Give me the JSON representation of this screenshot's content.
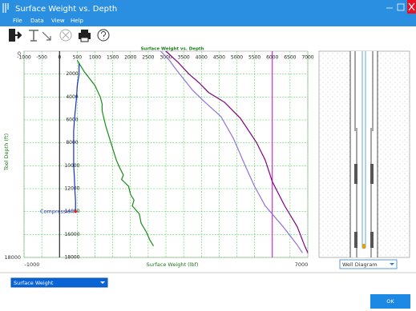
{
  "window": {
    "title": "Surface Weight vs. Depth",
    "menu": [
      "File",
      "Data",
      "View",
      "Help"
    ]
  },
  "chart_data": {
    "type": "line",
    "title": "Surface Weight vs. Depth",
    "x_label": "Surface Weight (lbf)",
    "y_label": "Tool Depth (ft)",
    "annotation": "Compression",
    "xlim": [
      -1000,
      7000
    ],
    "ylim": [
      0,
      18000
    ],
    "xticks": [
      -1000,
      -500,
      0,
      500,
      1000,
      1500,
      2000,
      2500,
      3000,
      3500,
      4000,
      4500,
      5000,
      5500,
      6000,
      6500,
      7000
    ],
    "yticks": [
      2000,
      4000,
      6000,
      8000,
      10000,
      12000,
      14000,
      16000,
      18000
    ],
    "grid": true,
    "grid_color": "#33cc33",
    "y_inverted": true,
    "series": [
      {
        "color": "#1030d0",
        "x": [
          550,
          550,
          500,
          480,
          450,
          420,
          400,
          400,
          400,
          400,
          420,
          430,
          450,
          450
        ],
        "y": [
          1000,
          2000,
          3000,
          4000,
          5000,
          6000,
          7000,
          8000,
          9000,
          10000,
          11000,
          12000,
          13000,
          14000
        ]
      },
      {
        "color": "#1a8a1a",
        "x": [
          500,
          700,
          1000,
          1150,
          1200,
          1200,
          1300,
          1450,
          1600,
          1700,
          1800,
          1750,
          1950,
          2000,
          2100,
          2050,
          2250,
          2300,
          2450,
          2550,
          2650
        ],
        "y": [
          800,
          1800,
          3000,
          4000,
          4600,
          5200,
          6500,
          8000,
          9500,
          10200,
          10800,
          11200,
          11800,
          12500,
          13000,
          13500,
          14200,
          15000,
          15800,
          16500,
          17000
        ]
      },
      {
        "color": "#800080",
        "x": [
          3000,
          3350,
          3650,
          3950,
          4200,
          4650,
          5100,
          5550,
          5800,
          6000,
          6350,
          6700,
          6900,
          7000
        ],
        "y": [
          0,
          1000,
          2000,
          2800,
          3600,
          4450,
          5850,
          7950,
          9500,
          11400,
          13500,
          15300,
          16900,
          17600
        ]
      },
      {
        "color": "#9370db",
        "x": [
          2850,
          3100,
          3300,
          3750,
          4100,
          4550,
          4900,
          5250,
          5500,
          5800,
          6300,
          6700,
          6850
        ],
        "y": [
          0,
          800,
          1650,
          3400,
          4450,
          5700,
          7600,
          10100,
          11800,
          13500,
          15300,
          16900,
          17600
        ]
      }
    ],
    "reference_lines": [
      {
        "x": 0,
        "color": "#000000"
      },
      {
        "x": 6000,
        "color": "#cc00cc"
      }
    ],
    "marker": {
      "x": 450,
      "y": 14000,
      "color": "#e02020"
    }
  },
  "well_panel": {
    "selector": "Well Diagram"
  },
  "plot_selector": "Surface Weight",
  "ok_button": "OK"
}
